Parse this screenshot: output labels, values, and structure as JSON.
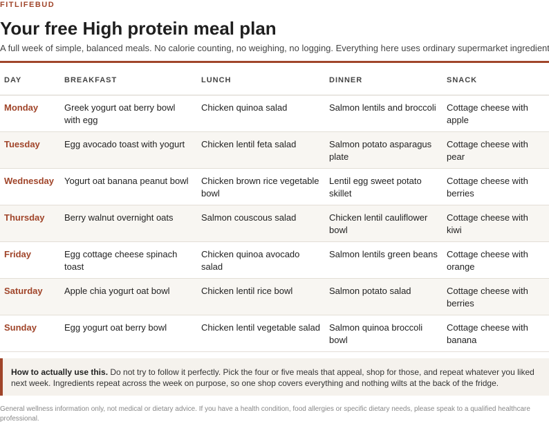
{
  "brand": "FITLIFEBUD",
  "title": "Your free High protein meal plan",
  "subtitle": "A full week of simple, balanced meals. No calorie counting, no weighing, no logging. Everything here uses ordinary supermarket ingredients.",
  "table": {
    "headers": [
      "DAY",
      "BREAKFAST",
      "LUNCH",
      "DINNER",
      "SNACK"
    ],
    "rows": [
      {
        "day": "Monday",
        "breakfast": "Greek yogurt oat berry bowl with egg",
        "lunch": "Chicken quinoa salad",
        "dinner": "Salmon lentils and broccoli",
        "snack": "Cottage cheese with apple"
      },
      {
        "day": "Tuesday",
        "breakfast": "Egg avocado toast with yogurt",
        "lunch": "Chicken lentil feta salad",
        "dinner": "Salmon potato asparagus plate",
        "snack": "Cottage cheese with pear"
      },
      {
        "day": "Wednesday",
        "breakfast": "Yogurt oat banana peanut bowl",
        "lunch": "Chicken brown rice vegetable bowl",
        "dinner": "Lentil egg sweet potato skillet",
        "snack": "Cottage cheese with berries"
      },
      {
        "day": "Thursday",
        "breakfast": "Berry walnut overnight oats",
        "lunch": "Salmon couscous salad",
        "dinner": "Chicken lentil cauliflower bowl",
        "snack": "Cottage cheese with kiwi"
      },
      {
        "day": "Friday",
        "breakfast": "Egg cottage cheese spinach toast",
        "lunch": "Chicken quinoa avocado salad",
        "dinner": "Salmon lentils green beans",
        "snack": "Cottage cheese with orange"
      },
      {
        "day": "Saturday",
        "breakfast": "Apple chia yogurt oat bowl",
        "lunch": "Chicken lentil rice bowl",
        "dinner": "Salmon potato salad",
        "snack": "Cottage cheese with berries"
      },
      {
        "day": "Sunday",
        "breakfast": "Egg yogurt oat berry bowl",
        "lunch": "Chicken lentil vegetable salad",
        "dinner": "Salmon quinoa broccoli bowl",
        "snack": "Cottage cheese with banana"
      }
    ]
  },
  "tip": {
    "lead": "How to actually use this.",
    "body": " Do not try to follow it perfectly. Pick the four or five meals that appeal, shop for those, and repeat whatever you liked next week. Ingredients repeat across the week on purpose, so one shop covers everything and nothing wilts at the back of the fridge."
  },
  "disclaimer": "General wellness information only, not medical or dietary advice. If you have a health condition, food allergies or specific dietary needs, please speak to a qualified healthcare professional.",
  "colors": {
    "accent": "#a0452a",
    "stripe": "#f8f6f2",
    "tip_bg": "#f5f2ed"
  }
}
